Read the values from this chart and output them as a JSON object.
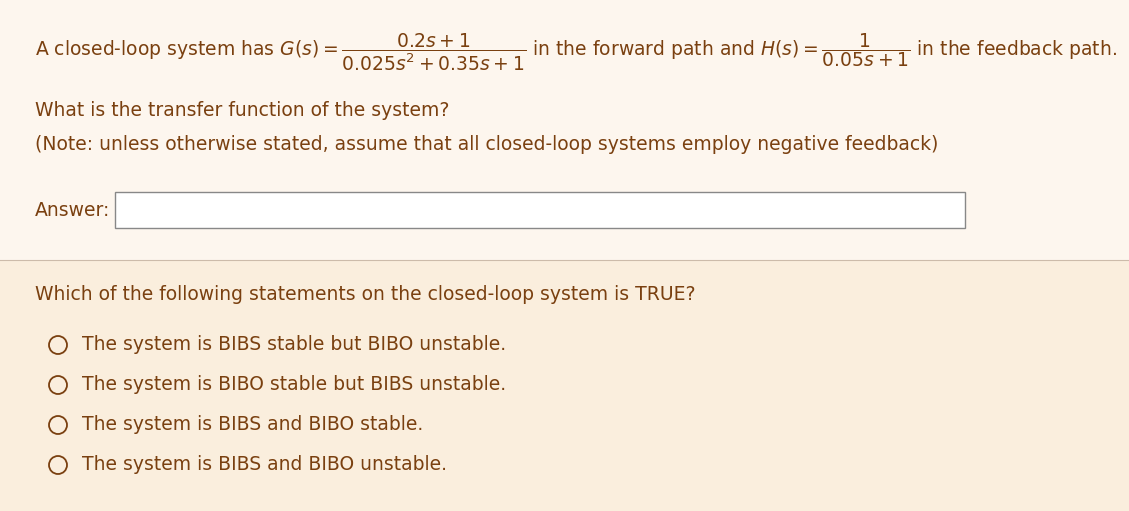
{
  "bg_color_top": "#fdf6ee",
  "bg_color_bottom": "#faeedd",
  "text_color": "#7a4010",
  "answer_box_color": "#888888",
  "answer_box_fill": "#ffffff",
  "font_size": 13.5,
  "question_font_size": 13.5,
  "option_font_size": 13.5,
  "line2": "What is the transfer function of the system?",
  "line3": "(Note: unless otherwise stated, assume that all closed-loop systems employ negative feedback)",
  "answer_label": "Answer:",
  "question": "Which of the following statements on the closed-loop system is TRUE?",
  "options": [
    "The system is BIBS stable but BIBO unstable.",
    "The system is BIBO stable but BIBS unstable.",
    "The system is BIBS and BIBO stable.",
    "The system is BIBS and BIBO unstable."
  ]
}
